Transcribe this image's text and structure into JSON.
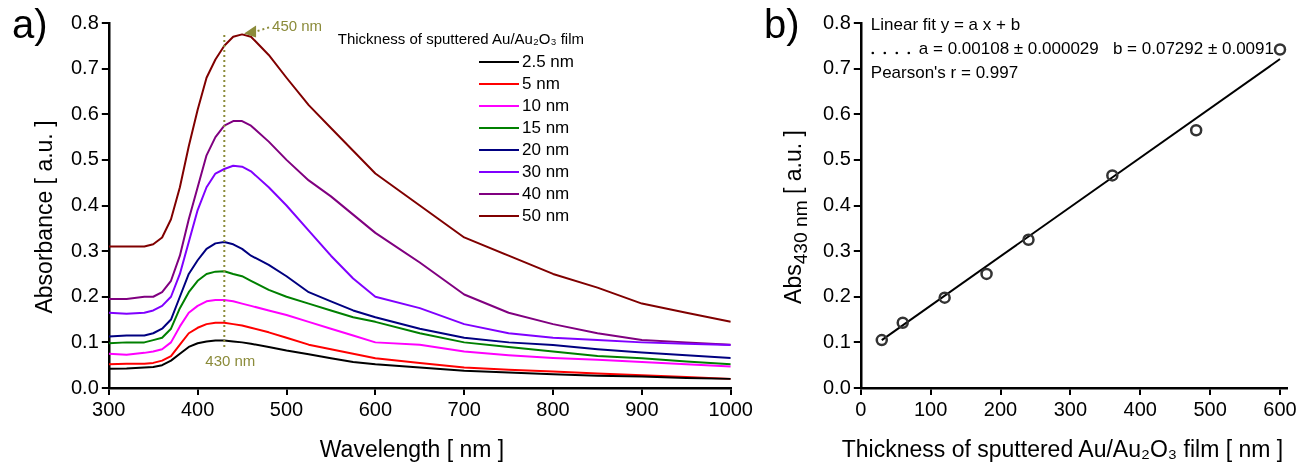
{
  "chart_data": [
    {
      "type": "line",
      "title": "a)",
      "xlabel": "Wavelength [ nm ]",
      "ylabel": "Absorbance [ a.u. ]",
      "legend_title": "Thickness of sputtered Au/Au₂O₃ film",
      "legend": "top right",
      "marker": "none",
      "grid": false,
      "x": [
        300,
        320,
        340,
        350,
        360,
        370,
        380,
        390,
        400,
        410,
        420,
        430,
        440,
        450,
        460,
        480,
        500,
        525,
        550,
        575,
        600,
        650,
        700,
        750,
        800,
        850,
        900,
        950,
        1000
      ],
      "xlim": [
        300,
        1000
      ],
      "xticks": [
        300,
        400,
        500,
        600,
        700,
        800,
        900,
        1000
      ],
      "ylim": [
        0,
        0.8
      ],
      "yticks": [
        {
          "value": 0,
          "label": "0.0"
        },
        0.1,
        0.2,
        0.3,
        0.4,
        0.5,
        0.6,
        0.7,
        0.8
      ],
      "series": [
        {
          "name": "2.5 nm",
          "color": "#000000",
          "values": [
            0.042,
            0.043,
            0.045,
            0.046,
            0.05,
            0.06,
            0.075,
            0.09,
            0.098,
            0.102,
            0.104,
            0.104,
            0.102,
            0.1,
            0.097,
            0.09,
            0.082,
            0.074,
            0.065,
            0.057,
            0.052,
            0.045,
            0.038,
            0.034,
            0.03,
            0.027,
            0.025,
            0.022,
            0.02
          ]
        },
        {
          "name": "5 nm",
          "color": "#ff0000",
          "values": [
            0.052,
            0.053,
            0.053,
            0.055,
            0.06,
            0.07,
            0.095,
            0.12,
            0.132,
            0.14,
            0.143,
            0.143,
            0.14,
            0.137,
            0.132,
            0.122,
            0.11,
            0.095,
            0.085,
            0.075,
            0.065,
            0.055,
            0.045,
            0.04,
            0.036,
            0.032,
            0.028,
            0.024,
            0.02
          ]
        },
        {
          "name": "10 nm",
          "color": "#ff00ff",
          "values": [
            0.075,
            0.073,
            0.077,
            0.08,
            0.085,
            0.1,
            0.135,
            0.165,
            0.18,
            0.19,
            0.193,
            0.193,
            0.19,
            0.185,
            0.18,
            0.17,
            0.16,
            0.145,
            0.13,
            0.115,
            0.1,
            0.095,
            0.08,
            0.072,
            0.066,
            0.062,
            0.057,
            0.052,
            0.047
          ]
        },
        {
          "name": "15 nm",
          "color": "#008000",
          "values": [
            0.098,
            0.1,
            0.1,
            0.105,
            0.11,
            0.13,
            0.175,
            0.21,
            0.235,
            0.25,
            0.255,
            0.256,
            0.25,
            0.245,
            0.235,
            0.215,
            0.2,
            0.185,
            0.17,
            0.155,
            0.145,
            0.12,
            0.1,
            0.09,
            0.08,
            0.07,
            0.065,
            0.058,
            0.052
          ]
        },
        {
          "name": "20 nm",
          "color": "#000080",
          "values": [
            0.113,
            0.115,
            0.115,
            0.12,
            0.13,
            0.15,
            0.2,
            0.25,
            0.28,
            0.305,
            0.317,
            0.32,
            0.315,
            0.305,
            0.29,
            0.27,
            0.245,
            0.21,
            0.19,
            0.17,
            0.155,
            0.13,
            0.11,
            0.1,
            0.094,
            0.085,
            0.078,
            0.072,
            0.066
          ]
        },
        {
          "name": "30 nm",
          "color": "#8000ff",
          "values": [
            0.165,
            0.163,
            0.165,
            0.17,
            0.18,
            0.2,
            0.25,
            0.32,
            0.39,
            0.44,
            0.47,
            0.48,
            0.487,
            0.485,
            0.475,
            0.44,
            0.4,
            0.345,
            0.29,
            0.24,
            0.2,
            0.175,
            0.14,
            0.12,
            0.11,
            0.105,
            0.1,
            0.097,
            0.094
          ]
        },
        {
          "name": "40 nm",
          "color": "#800080",
          "values": [
            0.195,
            0.195,
            0.2,
            0.2,
            0.21,
            0.235,
            0.29,
            0.37,
            0.44,
            0.51,
            0.55,
            0.575,
            0.585,
            0.585,
            0.575,
            0.54,
            0.5,
            0.455,
            0.42,
            0.38,
            0.34,
            0.275,
            0.205,
            0.165,
            0.14,
            0.12,
            0.105,
            0.1,
            0.095
          ]
        },
        {
          "name": "50 nm",
          "color": "#800000",
          "values": [
            0.31,
            0.31,
            0.31,
            0.315,
            0.33,
            0.37,
            0.44,
            0.53,
            0.61,
            0.68,
            0.72,
            0.75,
            0.77,
            0.775,
            0.77,
            0.73,
            0.68,
            0.62,
            0.57,
            0.52,
            0.47,
            0.4,
            0.33,
            0.29,
            0.25,
            0.22,
            0.185,
            0.165,
            0.145
          ]
        }
      ],
      "ref_lines": [
        {
          "axis": "x",
          "value": 430,
          "label": "430 nm",
          "color": "#8b8b3a",
          "line_style": "dotted"
        }
      ],
      "annotations": [
        {
          "text": "450 nm",
          "x": 450,
          "y": 0.775
        }
      ]
    },
    {
      "type": "scatter",
      "title": "b)",
      "xlabel": "Thickness of sputtered Au/Au₂O₃ film [ nm ]",
      "ylabel": "Abs$_{430 nm}$ [ a.u. ]",
      "marker": "circle",
      "grid": false,
      "x": [
        30,
        60,
        120,
        180,
        240,
        360,
        480,
        600
      ],
      "xlim": [
        0,
        610
      ],
      "xticks": [
        0,
        100,
        200,
        300,
        400,
        500,
        600
      ],
      "ylim": [
        0,
        0.8
      ],
      "yticks": [
        {
          "value": 0,
          "label": "0.0"
        },
        0.1,
        0.2,
        0.3,
        0.4,
        0.5,
        0.6,
        0.7,
        0.8
      ],
      "series": [
        {
          "color": "#333333",
          "values": [
            0.105,
            0.143,
            0.198,
            0.25,
            0.325,
            0.466,
            0.565,
            0.742
          ]
        },
        {
          "type": "line",
          "marker": "none",
          "color": "#000000",
          "x": [
            30,
            600
          ],
          "values": [
            0.105,
            0.721
          ]
        }
      ],
      "annotations": [
        "Linear fit y = a x + b",
        "a = 0.00108 ± 0.000029   b = 0.07292 ± 0.0091",
        "Pearson's r = 0.997"
      ]
    }
  ]
}
